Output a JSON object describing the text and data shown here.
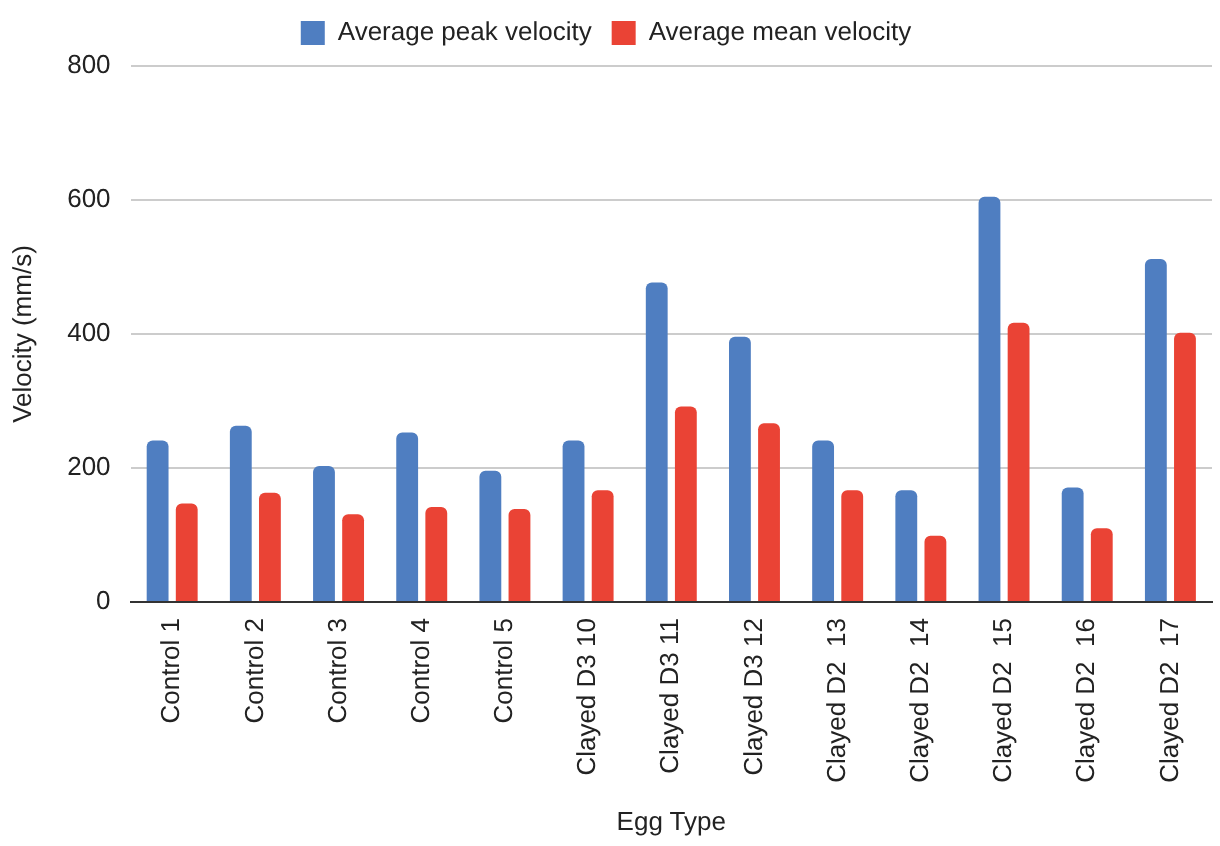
{
  "chart_data": {
    "type": "bar",
    "xlabel": "Egg Type",
    "ylabel": "Velocity (mm/s)",
    "categories": [
      "Control 1",
      "Control 2",
      "Control 3",
      "Control 4",
      "Control 5",
      "Clayed D3 10",
      "Clayed D3 11",
      "Clayed D3 12",
      "Clayed D2  13",
      "Clayed D2  14",
      "Clayed D2  15",
      "Clayed D2  16",
      "Clayed D2  17"
    ],
    "series": [
      {
        "name": "Average peak velocity",
        "color": "#4f7ec1",
        "values": [
          241,
          263,
          203,
          253,
          196,
          241,
          477,
          396,
          241,
          167,
          605,
          171,
          512
        ]
      },
      {
        "name": "Average mean velocity",
        "color": "#ea4335",
        "values": [
          147,
          163,
          131,
          142,
          139,
          167,
          292,
          267,
          167,
          99,
          417,
          110,
          402
        ]
      }
    ],
    "ylim": [
      0,
      800
    ],
    "yticks": [
      0,
      200,
      400,
      600,
      800
    ],
    "grid": "y",
    "legend": "top"
  }
}
